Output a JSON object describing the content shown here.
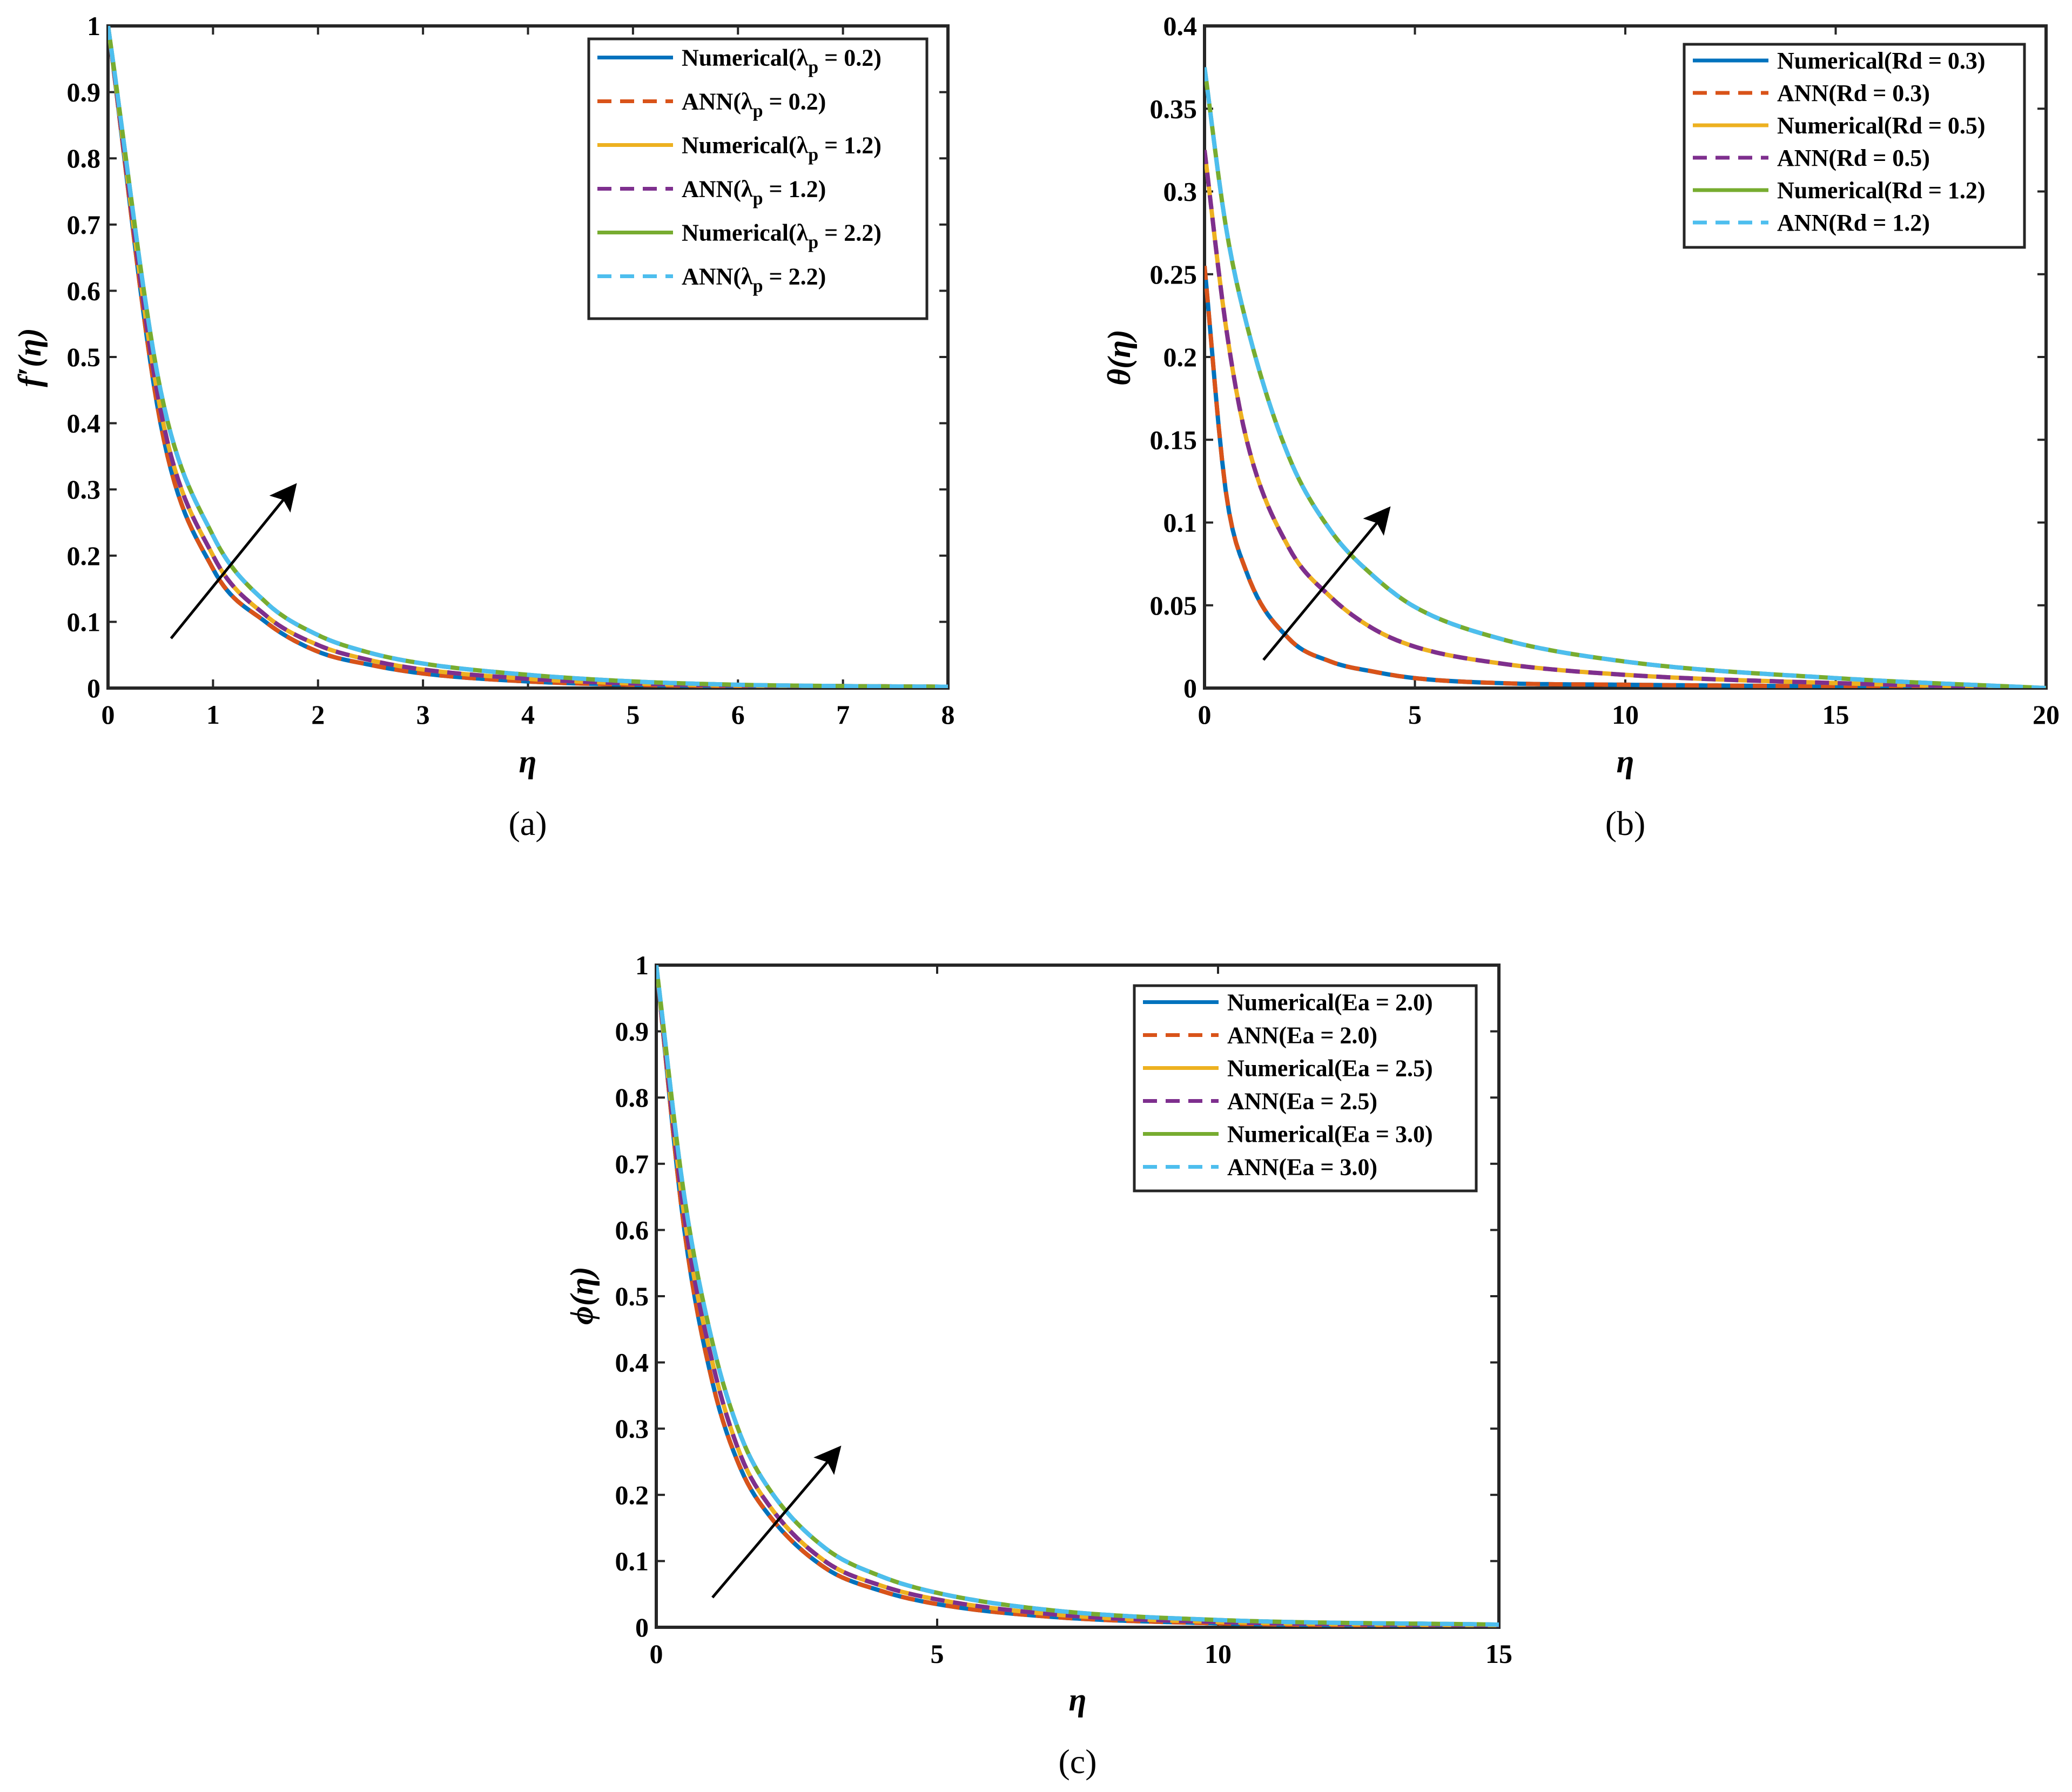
{
  "figure": {
    "panels": [
      {
        "id": "a",
        "label": "(a)"
      },
      {
        "id": "b",
        "label": "(b)"
      },
      {
        "id": "c",
        "label": "(c)"
      }
    ]
  },
  "chart_data": [
    {
      "type": "line",
      "panel": "(a)",
      "xlabel": "η",
      "ylabel": "f′(η)",
      "xlim": [
        0,
        8
      ],
      "ylim": [
        0,
        1
      ],
      "xticks": [
        "0",
        "1",
        "2",
        "3",
        "4",
        "5",
        "6",
        "7",
        "8"
      ],
      "yticks": [
        "0",
        "0.1",
        "0.2",
        "0.3",
        "0.4",
        "0.5",
        "0.6",
        "0.7",
        "0.8",
        "0.9",
        "1"
      ],
      "grid": false,
      "legend_position": "top-right",
      "legend": [
        {
          "label": "Numerical(λp = 0.2)",
          "color": "#0072BD",
          "dash": "solid"
        },
        {
          "label": "ANN(λp = 0.2)",
          "color": "#D95319",
          "dash": "dashed"
        },
        {
          "label": "Numerical(λp = 1.2)",
          "color": "#EDB120",
          "dash": "solid"
        },
        {
          "label": "ANN(λp = 1.2)",
          "color": "#7E2F8E",
          "dash": "dashed"
        },
        {
          "label": "Numerical(λp = 2.2)",
          "color": "#77AC30",
          "dash": "solid"
        },
        {
          "label": "ANN(λp = 2.2)",
          "color": "#4DBEEE",
          "dash": "dashed"
        }
      ],
      "x": [
        0,
        0.5,
        1,
        1.5,
        2,
        2.5,
        3,
        4,
        5,
        6,
        7,
        8
      ],
      "series": [
        {
          "name": "Numerical(λp = 0.2)",
          "color": "#0072BD",
          "dash": "solid",
          "values": [
            1.0,
            0.4,
            0.18,
            0.1,
            0.055,
            0.035,
            0.022,
            0.01,
            0.005,
            0.003,
            0.002,
            0.002
          ]
        },
        {
          "name": "ANN(λp = 0.2)",
          "color": "#D95319",
          "dash": "dashed",
          "values": [
            1.0,
            0.4,
            0.18,
            0.1,
            0.055,
            0.035,
            0.022,
            0.01,
            0.005,
            0.003,
            0.002,
            0.002
          ]
        },
        {
          "name": "Numerical(λp = 1.2)",
          "color": "#EDB120",
          "dash": "solid",
          "values": [
            1.0,
            0.42,
            0.2,
            0.11,
            0.065,
            0.042,
            0.028,
            0.014,
            0.007,
            0.004,
            0.003,
            0.002
          ]
        },
        {
          "name": "ANN(λp = 1.2)",
          "color": "#7E2F8E",
          "dash": "dashed",
          "values": [
            1.0,
            0.42,
            0.2,
            0.11,
            0.065,
            0.042,
            0.028,
            0.014,
            0.007,
            0.004,
            0.003,
            0.002
          ]
        },
        {
          "name": "Numerical(λp = 2.2)",
          "color": "#77AC30",
          "dash": "solid",
          "values": [
            1.0,
            0.45,
            0.23,
            0.13,
            0.08,
            0.053,
            0.037,
            0.02,
            0.01,
            0.005,
            0.003,
            0.002
          ]
        },
        {
          "name": "ANN(λp = 2.2)",
          "color": "#4DBEEE",
          "dash": "dashed",
          "values": [
            1.0,
            0.45,
            0.23,
            0.13,
            0.08,
            0.053,
            0.037,
            0.02,
            0.01,
            0.005,
            0.003,
            0.002
          ]
        }
      ],
      "annotations": [
        {
          "type": "arrow",
          "from": [
            0.6,
            0.075
          ],
          "to": [
            1.75,
            0.3
          ]
        }
      ]
    },
    {
      "type": "line",
      "panel": "(b)",
      "xlabel": "η",
      "ylabel": "θ(η)",
      "xlim": [
        0,
        20
      ],
      "ylim": [
        0,
        0.4
      ],
      "xticks": [
        "0",
        "5",
        "10",
        "15",
        "20"
      ],
      "yticks": [
        "0",
        "0.05",
        "0.1",
        "0.15",
        "0.2",
        "0.25",
        "0.3",
        "0.35",
        "0.4"
      ],
      "grid": false,
      "legend_position": "top-right",
      "legend": [
        {
          "label": "Numerical(Rd = 0.3)",
          "color": "#0072BD",
          "dash": "solid"
        },
        {
          "label": "ANN(Rd = 0.3)",
          "color": "#D95319",
          "dash": "dashed"
        },
        {
          "label": "Numerical(Rd = 0.5)",
          "color": "#EDB120",
          "dash": "solid"
        },
        {
          "label": "ANN(Rd = 0.5)",
          "color": "#7E2F8E",
          "dash": "dashed"
        },
        {
          "label": "Numerical(Rd = 1.2)",
          "color": "#77AC30",
          "dash": "solid"
        },
        {
          "label": "ANN(Rd = 1.2)",
          "color": "#4DBEEE",
          "dash": "dashed"
        }
      ],
      "x": [
        0,
        0.5,
        1,
        2,
        3,
        4,
        5,
        7,
        10,
        15,
        20
      ],
      "series": [
        {
          "name": "Numerical(Rd = 0.3)",
          "color": "#0072BD",
          "dash": "solid",
          "values": [
            0.255,
            0.12,
            0.07,
            0.03,
            0.016,
            0.01,
            0.006,
            0.003,
            0.002,
            0.001,
            0.0
          ]
        },
        {
          "name": "ANN(Rd = 0.3)",
          "color": "#D95319",
          "dash": "dashed",
          "values": [
            0.255,
            0.12,
            0.07,
            0.03,
            0.016,
            0.01,
            0.006,
            0.003,
            0.002,
            0.001,
            0.0
          ]
        },
        {
          "name": "Numerical(Rd = 0.5)",
          "color": "#EDB120",
          "dash": "solid",
          "values": [
            0.325,
            0.22,
            0.15,
            0.085,
            0.055,
            0.036,
            0.025,
            0.015,
            0.008,
            0.003,
            0.0
          ]
        },
        {
          "name": "ANN(Rd = 0.5)",
          "color": "#7E2F8E",
          "dash": "dashed",
          "values": [
            0.325,
            0.22,
            0.15,
            0.085,
            0.055,
            0.036,
            0.025,
            0.015,
            0.008,
            0.003,
            0.0
          ]
        },
        {
          "name": "Numerical(Rd = 1.2)",
          "color": "#77AC30",
          "dash": "solid",
          "values": [
            0.375,
            0.28,
            0.22,
            0.14,
            0.095,
            0.068,
            0.049,
            0.03,
            0.016,
            0.006,
            0.0
          ]
        },
        {
          "name": "ANN(Rd = 1.2)",
          "color": "#4DBEEE",
          "dash": "dashed",
          "values": [
            0.375,
            0.28,
            0.22,
            0.14,
            0.095,
            0.068,
            0.049,
            0.03,
            0.016,
            0.006,
            0.0
          ]
        }
      ],
      "annotations": [
        {
          "type": "arrow",
          "from": [
            1.4,
            0.017
          ],
          "to": [
            4.3,
            0.106
          ]
        }
      ]
    },
    {
      "type": "line",
      "panel": "(c)",
      "xlabel": "η",
      "ylabel": "ϕ(η)",
      "xlim": [
        0,
        15
      ],
      "ylim": [
        0,
        1
      ],
      "xticks": [
        "0",
        "5",
        "10",
        "15"
      ],
      "yticks": [
        "0",
        "0.1",
        "0.2",
        "0.3",
        "0.4",
        "0.5",
        "0.6",
        "0.7",
        "0.8",
        "0.9",
        "1"
      ],
      "grid": false,
      "legend_position": "top-right",
      "legend": [
        {
          "label": "Numerical(Ea = 2.0)",
          "color": "#0072BD",
          "dash": "solid"
        },
        {
          "label": "ANN(Ea = 2.0)",
          "color": "#D95319",
          "dash": "dashed"
        },
        {
          "label": "Numerical(Ea = 2.5)",
          "color": "#EDB120",
          "dash": "solid"
        },
        {
          "label": "ANN(Ea = 2.5)",
          "color": "#7E2F8E",
          "dash": "dashed"
        },
        {
          "label": "Numerical(Ea = 3.0)",
          "color": "#77AC30",
          "dash": "solid"
        },
        {
          "label": "ANN(Ea = 3.0)",
          "color": "#4DBEEE",
          "dash": "dashed"
        }
      ],
      "x": [
        0,
        0.5,
        1,
        1.5,
        2,
        3,
        4,
        5,
        7,
        10,
        15
      ],
      "series": [
        {
          "name": "Numerical(Ea = 2.0)",
          "color": "#0072BD",
          "dash": "solid",
          "values": [
            1.0,
            0.6,
            0.37,
            0.24,
            0.17,
            0.09,
            0.055,
            0.035,
            0.016,
            0.006,
            0.002
          ]
        },
        {
          "name": "ANN(Ea = 2.0)",
          "color": "#D95319",
          "dash": "dashed",
          "values": [
            1.0,
            0.6,
            0.37,
            0.24,
            0.17,
            0.09,
            0.055,
            0.035,
            0.016,
            0.006,
            0.002
          ]
        },
        {
          "name": "Numerical(Ea = 2.5)",
          "color": "#EDB120",
          "dash": "solid",
          "values": [
            1.0,
            0.62,
            0.4,
            0.26,
            0.185,
            0.1,
            0.063,
            0.042,
            0.02,
            0.008,
            0.003
          ]
        },
        {
          "name": "ANN(Ea = 2.5)",
          "color": "#7E2F8E",
          "dash": "dashed",
          "values": [
            1.0,
            0.62,
            0.4,
            0.26,
            0.185,
            0.1,
            0.063,
            0.042,
            0.02,
            0.008,
            0.003
          ]
        },
        {
          "name": "Numerical(Ea = 3.0)",
          "color": "#77AC30",
          "dash": "solid",
          "values": [
            1.0,
            0.65,
            0.43,
            0.29,
            0.21,
            0.12,
            0.077,
            0.052,
            0.026,
            0.011,
            0.004
          ]
        },
        {
          "name": "ANN(Ea = 3.0)",
          "color": "#4DBEEE",
          "dash": "dashed",
          "values": [
            1.0,
            0.65,
            0.43,
            0.29,
            0.21,
            0.12,
            0.077,
            0.052,
            0.026,
            0.011,
            0.004
          ]
        }
      ],
      "annotations": [
        {
          "type": "arrow",
          "from": [
            1.0,
            0.045
          ],
          "to": [
            3.2,
            0.265
          ]
        }
      ]
    }
  ]
}
